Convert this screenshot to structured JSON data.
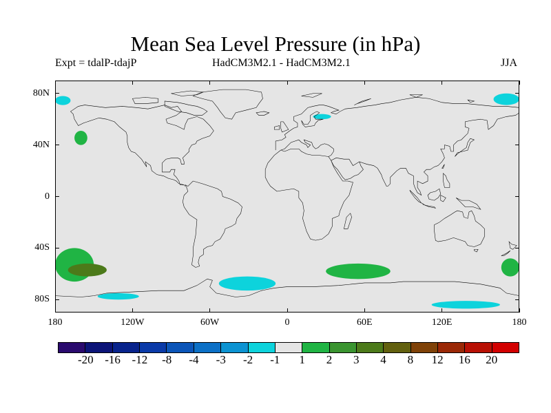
{
  "title": "Mean Sea Level Pressure (in hPa)",
  "experiment": "Expt = tdalP-tdajP",
  "models": "HadCM3M2.1 - HadCM3M2.1",
  "season": "JJA",
  "lat_labels": [
    "80N",
    "40N",
    "0",
    "40S",
    "80S"
  ],
  "lat_values": [
    80,
    40,
    0,
    -40,
    -80
  ],
  "lon_labels": [
    "180",
    "120W",
    "60W",
    "0",
    "60E",
    "120E",
    "180"
  ],
  "lon_values": [
    -180,
    -120,
    -60,
    0,
    60,
    120,
    180
  ],
  "colorbar": {
    "labels": [
      "-20",
      "-16",
      "-12",
      "-8",
      "-4",
      "-3",
      "-2",
      "-1",
      "1",
      "2",
      "3",
      "4",
      "8",
      "12",
      "16",
      "20"
    ],
    "colors": [
      "#2a0a6e",
      "#0c1478",
      "#08238c",
      "#0a3aa8",
      "#0b55b8",
      "#0c70c6",
      "#0c93d2",
      "#0dd3dc",
      "#e5e5e5",
      "#20b444",
      "#3a9430",
      "#4c7a1a",
      "#62600f",
      "#7f4208",
      "#9a2806",
      "#b81004",
      "#d20000"
    ]
  },
  "map_colors": {
    "land_ocean": "#e5e5e5",
    "positive_1": "#20b444",
    "positive_2": "#4c7a1a",
    "negative_1": "#0dd3dc",
    "coast": "#000000"
  },
  "anomaly_regions": [
    {
      "level": "1 to 2",
      "color": "#20b444",
      "lon_min": -180,
      "lon_max": -150,
      "lat_min": -66,
      "lat_max": -40
    },
    {
      "level": "3 to 4",
      "color": "#4c7a1a",
      "lon_min": -170,
      "lon_max": -140,
      "lat_min": -62,
      "lat_max": -52
    },
    {
      "level": "1 to 2",
      "color": "#20b444",
      "lon_min": -165,
      "lon_max": -155,
      "lat_min": 40,
      "lat_max": 51
    },
    {
      "level": "-2 to -1",
      "color": "#0dd3dc",
      "lon_min": -180,
      "lon_max": -168,
      "lat_min": 71,
      "lat_max": 78
    },
    {
      "level": "-2 to -1",
      "color": "#0dd3dc",
      "lon_min": 160,
      "lon_max": 180,
      "lat_min": 71,
      "lat_max": 80
    },
    {
      "level": "1 to 2",
      "color": "#20b444",
      "lon_min": 166,
      "lon_max": 180,
      "lat_min": -62,
      "lat_max": -48
    },
    {
      "level": "1 to 2",
      "color": "#20b444",
      "lon_min": 30,
      "lon_max": 80,
      "lat_min": -64,
      "lat_max": -52
    },
    {
      "level": "-2 to -1",
      "color": "#0dd3dc",
      "lon_min": -53,
      "lon_max": -9,
      "lat_min": -73,
      "lat_max": -62
    },
    {
      "level": "-2 to -1",
      "color": "#0dd3dc",
      "lon_min": -147,
      "lon_max": -115,
      "lat_min": -80,
      "lat_max": -75
    },
    {
      "level": "-2 to -1",
      "color": "#0dd3dc",
      "lon_min": 112,
      "lon_max": 165,
      "lat_min": -87,
      "lat_max": -81
    },
    {
      "level": "-2 to -1",
      "color": "#0dd3dc",
      "lon_min": 20,
      "lon_max": 34,
      "lat_min": 60,
      "lat_max": 64
    }
  ]
}
